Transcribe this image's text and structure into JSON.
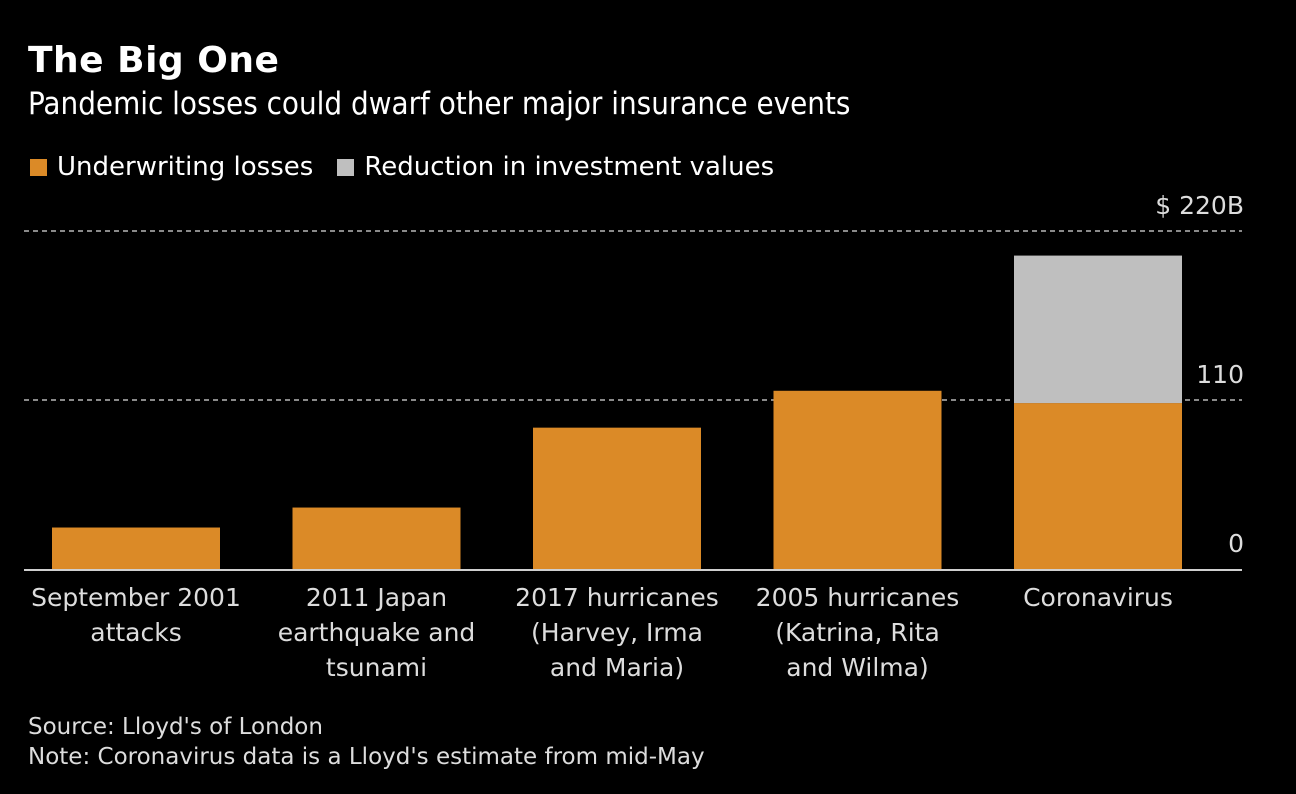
{
  "chart_data": {
    "type": "bar",
    "stacked": true,
    "title": "The Big One",
    "subtitle": "Pandemic losses could dwarf other major insurance events",
    "categories": [
      [
        "September 2001",
        "attacks"
      ],
      [
        "2011 Japan",
        "earthquake and",
        "tsunami"
      ],
      [
        "2017 hurricanes",
        "(Harvey, Irma",
        "and Maria)"
      ],
      [
        "2005 hurricanes",
        "(Katrina, Rita",
        "and Wilma)"
      ],
      [
        "Coronavirus"
      ]
    ],
    "series": [
      {
        "name": "Underwriting losses",
        "color": "#db8a27",
        "values": [
          27,
          40,
          92,
          116,
          108
        ]
      },
      {
        "name": "Reduction in investment values",
        "color": "#bfbfbf",
        "values": [
          0,
          0,
          0,
          0,
          96
        ]
      }
    ],
    "ylim": [
      0,
      220
    ],
    "yticks": [
      {
        "value": 0,
        "label": "0"
      },
      {
        "value": 110,
        "label": "110"
      },
      {
        "value": 220,
        "label": "$ 220B"
      }
    ],
    "grid": true,
    "legend": "top-left",
    "xlabel": "",
    "ylabel": ""
  },
  "footer": {
    "source": "Source: Lloyd's of London",
    "note": "Note: Coronavirus data is a Lloyd's estimate from mid-May"
  }
}
